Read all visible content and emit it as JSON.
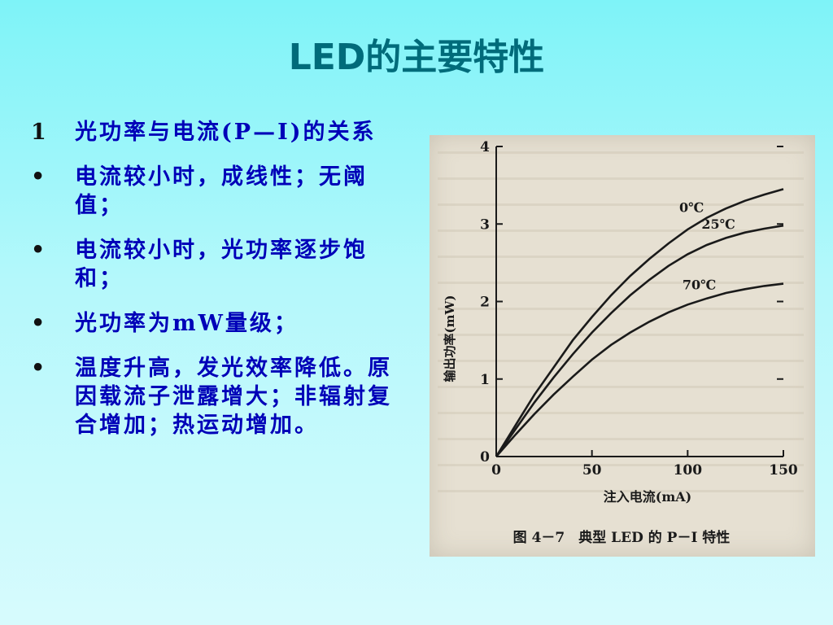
{
  "title": "LED的主要特性",
  "bullets": [
    {
      "marker": "1",
      "text": "光功率与电流(P—I)的关系"
    },
    {
      "marker": "•",
      "text": "电流较小时，成线性；无阈值；"
    },
    {
      "marker": "•",
      "text": "电流较小时，光功率逐步饱和；"
    },
    {
      "marker": "•",
      "text": "光功率为mW量级；"
    },
    {
      "marker": "•",
      "text": "温度升高，发光效率降低。原因载流子泄露增大；非辐射复合增加；热运动增加。"
    }
  ],
  "chart_data": {
    "type": "line",
    "caption": "图 4－7　典型 LED 的 P－I 特性",
    "xlabel": "注入电流(mA)",
    "ylabel": "输出功率(mW)",
    "xlim": [
      0,
      150
    ],
    "ylim": [
      0,
      4
    ],
    "x_ticks": [
      "0",
      "50",
      "100",
      "150"
    ],
    "y_ticks": [
      "0",
      "1",
      "2",
      "3",
      "4"
    ],
    "grid": false,
    "series": [
      {
        "name": "0℃",
        "x": [
          0,
          10,
          20,
          30,
          40,
          50,
          60,
          70,
          80,
          90,
          100,
          110,
          120,
          130,
          140,
          150
        ],
        "y": [
          0,
          0.4,
          0.8,
          1.15,
          1.5,
          1.8,
          2.08,
          2.33,
          2.55,
          2.75,
          2.93,
          3.08,
          3.2,
          3.3,
          3.38,
          3.45
        ]
      },
      {
        "name": "25℃",
        "x": [
          0,
          10,
          20,
          30,
          40,
          50,
          60,
          70,
          80,
          90,
          100,
          110,
          120,
          130,
          140,
          150
        ],
        "y": [
          0,
          0.35,
          0.7,
          1.02,
          1.32,
          1.6,
          1.85,
          2.08,
          2.28,
          2.46,
          2.61,
          2.73,
          2.82,
          2.89,
          2.94,
          2.98
        ]
      },
      {
        "name": "70℃",
        "x": [
          0,
          10,
          20,
          30,
          40,
          50,
          60,
          70,
          80,
          90,
          100,
          110,
          120,
          130,
          140,
          150
        ],
        "y": [
          0,
          0.28,
          0.55,
          0.8,
          1.03,
          1.25,
          1.44,
          1.6,
          1.74,
          1.86,
          1.96,
          2.04,
          2.11,
          2.16,
          2.2,
          2.23
        ]
      }
    ]
  }
}
